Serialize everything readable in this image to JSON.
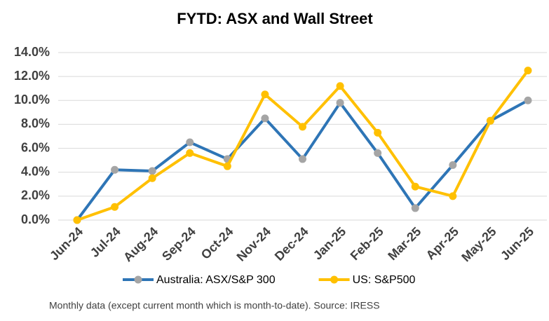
{
  "chart_data": {
    "type": "line",
    "title": "FYTD: ASX and Wall Street",
    "footnote": "Monthly data (except current month which is month-to-date).  Source: IRESS",
    "categories": [
      "Jun-24",
      "Jul-24",
      "Aug-24",
      "Sep-24",
      "Oct-24",
      "Nov-24",
      "Dec-24",
      "Jan-25",
      "Feb-25",
      "Mar-25",
      "Apr-25",
      "May-25",
      "Jun-25"
    ],
    "series": [
      {
        "name": "Australia: ASX/S&P 300",
        "color": "#2e75b6",
        "marker_color": "#a5a5a5",
        "values": [
          0,
          4.2,
          4.1,
          6.5,
          5.1,
          8.5,
          5.1,
          9.8,
          5.6,
          1.0,
          4.6,
          8.3,
          10.0
        ]
      },
      {
        "name": "US: S&P500",
        "color": "#ffc000",
        "marker_color": "#ffc000",
        "values": [
          0,
          1.1,
          3.5,
          5.6,
          4.5,
          10.5,
          7.8,
          11.2,
          7.3,
          2.8,
          2.0,
          8.3,
          12.5
        ]
      }
    ],
    "ylim": [
      0,
      14
    ],
    "yticks": [
      {
        "value": 0,
        "label": "0.0%"
      },
      {
        "value": 2,
        "label": "2.0%"
      },
      {
        "value": 4,
        "label": "4.0%"
      },
      {
        "value": 6,
        "label": "6.0%"
      },
      {
        "value": 8,
        "label": "8.0%"
      },
      {
        "value": 10,
        "label": "10.0%"
      },
      {
        "value": 12,
        "label": "12.0%"
      },
      {
        "value": 14,
        "label": "14.0%"
      }
    ],
    "grid": true,
    "legend": "bottom"
  }
}
